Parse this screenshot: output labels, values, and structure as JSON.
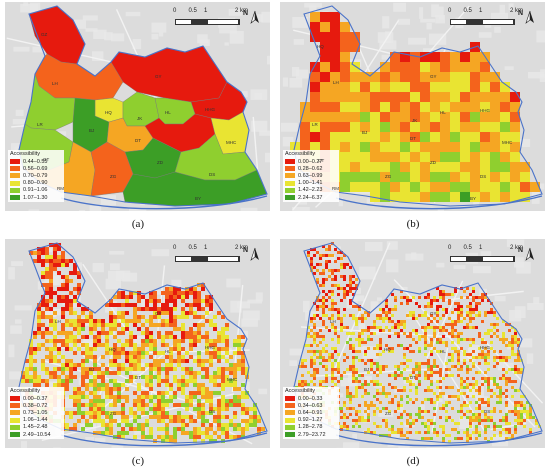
{
  "panels": [
    {
      "id": "a",
      "caption": "(a)",
      "legend": {
        "title": "Accessibility",
        "classes": [
          {
            "label": "0.44–0.55",
            "color": "#e61a0e"
          },
          {
            "label": "0.56–0.69",
            "color": "#f4631c"
          },
          {
            "label": "0.70–0.79",
            "color": "#f5a623"
          },
          {
            "label": "0.80–0.90",
            "color": "#e9e432"
          },
          {
            "label": "0.91–1.06",
            "color": "#8fcf2f"
          },
          {
            "label": "1.07–1.30",
            "color": "#3c9e26"
          }
        ]
      },
      "districts": [
        "GZ",
        "GY",
        "LH",
        "HQ",
        "JK",
        "HL",
        "HHG",
        "LR",
        "BJ",
        "DT",
        "HL",
        "MHC",
        "GT",
        "ZD",
        "RM",
        "ZG",
        "DS",
        "BY"
      ]
    },
    {
      "id": "b",
      "caption": "(b)",
      "legend": {
        "title": "Accessibility",
        "classes": [
          {
            "label": "0.00–0.27",
            "color": "#e61a0e"
          },
          {
            "label": "0.28–0.62",
            "color": "#f4631c"
          },
          {
            "label": "0.63–0.99",
            "color": "#f5a623"
          },
          {
            "label": "1.00–1.41",
            "color": "#e9e432"
          },
          {
            "label": "1.42–2.23",
            "color": "#8fcf2f"
          },
          {
            "label": "2.24–6.37",
            "color": "#3c9e26"
          }
        ]
      },
      "districts": [
        "HQ",
        "GY",
        "LH",
        "HL",
        "HHG",
        "JK",
        "LR",
        "BJ",
        "DT",
        "GT",
        "MHC",
        "ZD",
        "RM",
        "ZG",
        "DS",
        "BY"
      ]
    },
    {
      "id": "c",
      "caption": "(c)",
      "legend": {
        "title": "Accessibility",
        "classes": [
          {
            "label": "0.00–0.37",
            "color": "#e61a0e"
          },
          {
            "label": "0.38–0.72",
            "color": "#f4631c"
          },
          {
            "label": "0.73–1.05",
            "color": "#f5a623"
          },
          {
            "label": "1.06–1.44",
            "color": "#e9e432"
          },
          {
            "label": "1.45–2.48",
            "color": "#8fcf2f"
          },
          {
            "label": "2.49–10.54",
            "color": "#3c9e26"
          }
        ]
      },
      "districts": [
        "GY",
        "LH",
        "HHG",
        "HQ",
        "HL",
        "BJ",
        "DT",
        "MHC",
        "DS",
        "ZG"
      ]
    },
    {
      "id": "d",
      "caption": "(d)",
      "legend": {
        "title": "Accessibility",
        "classes": [
          {
            "label": "0.00–0.33",
            "color": "#e61a0e"
          },
          {
            "label": "0.34–0.63",
            "color": "#f4631c"
          },
          {
            "label": "0.64–0.91",
            "color": "#f5a623"
          },
          {
            "label": "0.92–1.27",
            "color": "#e9e432"
          },
          {
            "label": "1.28–2.78",
            "color": "#8fcf2f"
          },
          {
            "label": "2.79–23.72",
            "color": "#3c9e26"
          }
        ]
      },
      "districts": [
        "GY",
        "LH",
        "HHG",
        "HQ",
        "HL",
        "BJ",
        "DT",
        "DS",
        "ZG"
      ]
    }
  ],
  "scale_bar": {
    "ticks": [
      "0",
      "0.5",
      "1",
      "2 km"
    ]
  },
  "north_label": "N",
  "colors": {
    "river": "#4a73c9",
    "background": "#dcdcdc",
    "blocks": "#e9e9e9"
  }
}
